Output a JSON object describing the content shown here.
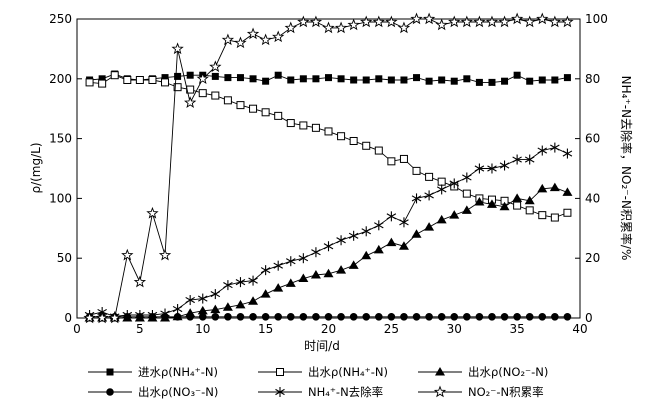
{
  "chart_data": {
    "type": "line",
    "xlabel": "时间/d",
    "ylabel": "ρ/(mg/L)",
    "ylabel_right": "NH₄⁺-N去除率，NO₂⁻-N积累率/%",
    "xlim": [
      0,
      40
    ],
    "ylim": [
      0,
      250
    ],
    "ylim_right": [
      0,
      100
    ],
    "xticks": [
      "0",
      "5",
      "10",
      "15",
      "20",
      "25",
      "30",
      "35",
      "40"
    ],
    "yticks": [
      "0",
      "50",
      "100",
      "150",
      "200",
      "250"
    ],
    "yticks_right": [
      "0",
      "20",
      "40",
      "60",
      "80",
      "100"
    ],
    "legend_position": "bottom",
    "x": [
      1,
      2,
      3,
      4,
      5,
      6,
      7,
      8,
      9,
      10,
      11,
      12,
      13,
      14,
      15,
      16,
      17,
      18,
      19,
      20,
      21,
      22,
      23,
      24,
      25,
      26,
      27,
      28,
      29,
      30,
      31,
      32,
      33,
      34,
      35,
      36,
      37,
      38,
      39
    ],
    "series": [
      {
        "name": "进水ρ(NH₄⁺-N)",
        "axis": "left",
        "marker": "square-filled",
        "values": [
          199,
          200,
          204,
          200,
          199,
          200,
          201,
          202,
          203,
          203,
          202,
          201,
          201,
          200,
          198,
          203,
          199,
          200,
          200,
          201,
          200,
          199,
          199,
          200,
          199,
          199,
          201,
          198,
          199,
          198,
          200,
          197,
          197,
          198,
          203,
          198,
          199,
          199,
          201
        ]
      },
      {
        "name": "出水ρ(NH₄⁺-N)",
        "axis": "left",
        "marker": "square-open",
        "values": [
          197,
          196,
          203,
          199,
          199,
          199,
          197,
          193,
          191,
          188,
          186,
          182,
          178,
          175,
          172,
          169,
          163,
          161,
          159,
          156,
          152,
          148,
          144,
          140,
          131,
          133,
          123,
          118,
          114,
          110,
          104,
          100,
          99,
          98,
          94,
          90,
          86,
          84,
          88
        ]
      },
      {
        "name": "出水ρ(NO₂⁻-N)",
        "axis": "left",
        "marker": "triangle-filled",
        "values": [
          0,
          0,
          0,
          0,
          0,
          0,
          0,
          1,
          4,
          6,
          7,
          9,
          11,
          14,
          20,
          25,
          29,
          33,
          36,
          37,
          40,
          44,
          52,
          57,
          63,
          60,
          70,
          76,
          82,
          86,
          90,
          97,
          95,
          93,
          100,
          98,
          108,
          109,
          105
        ]
      },
      {
        "name": "出水ρ(NO₃⁻-N)",
        "axis": "left",
        "marker": "circle-filled",
        "values": [
          1,
          1,
          1,
          1,
          1,
          1,
          1,
          1,
          1,
          1,
          1,
          1,
          1,
          1,
          1,
          1,
          1,
          1,
          1,
          1,
          1,
          1,
          1,
          1,
          1,
          1,
          1,
          1,
          1,
          1,
          1,
          1,
          1,
          1,
          1,
          1,
          1,
          1,
          1
        ]
      },
      {
        "name": "NH₄⁺-N去除率",
        "axis": "right",
        "marker": "asterisk",
        "values": [
          1,
          2,
          0.5,
          1,
          1,
          1,
          1.5,
          3,
          6,
          6.5,
          8,
          11,
          12,
          12.5,
          16,
          17.5,
          19,
          20,
          22,
          24,
          26,
          27.5,
          29,
          31,
          34,
          32,
          40,
          41,
          43,
          45,
          47,
          50,
          50,
          51,
          53,
          53,
          56,
          57,
          55
        ]
      },
      {
        "name": "NO₂⁻-N积累率",
        "axis": "right",
        "marker": "star-open",
        "values": [
          0,
          0,
          0,
          21,
          12,
          35,
          21,
          90,
          72,
          80,
          84,
          93,
          92,
          95,
          93,
          94,
          97,
          99,
          99,
          97,
          97,
          98,
          99,
          99,
          99,
          97,
          100,
          100,
          98,
          99,
          99,
          99,
          99,
          99,
          100,
          99,
          100,
          99,
          99
        ]
      }
    ]
  }
}
